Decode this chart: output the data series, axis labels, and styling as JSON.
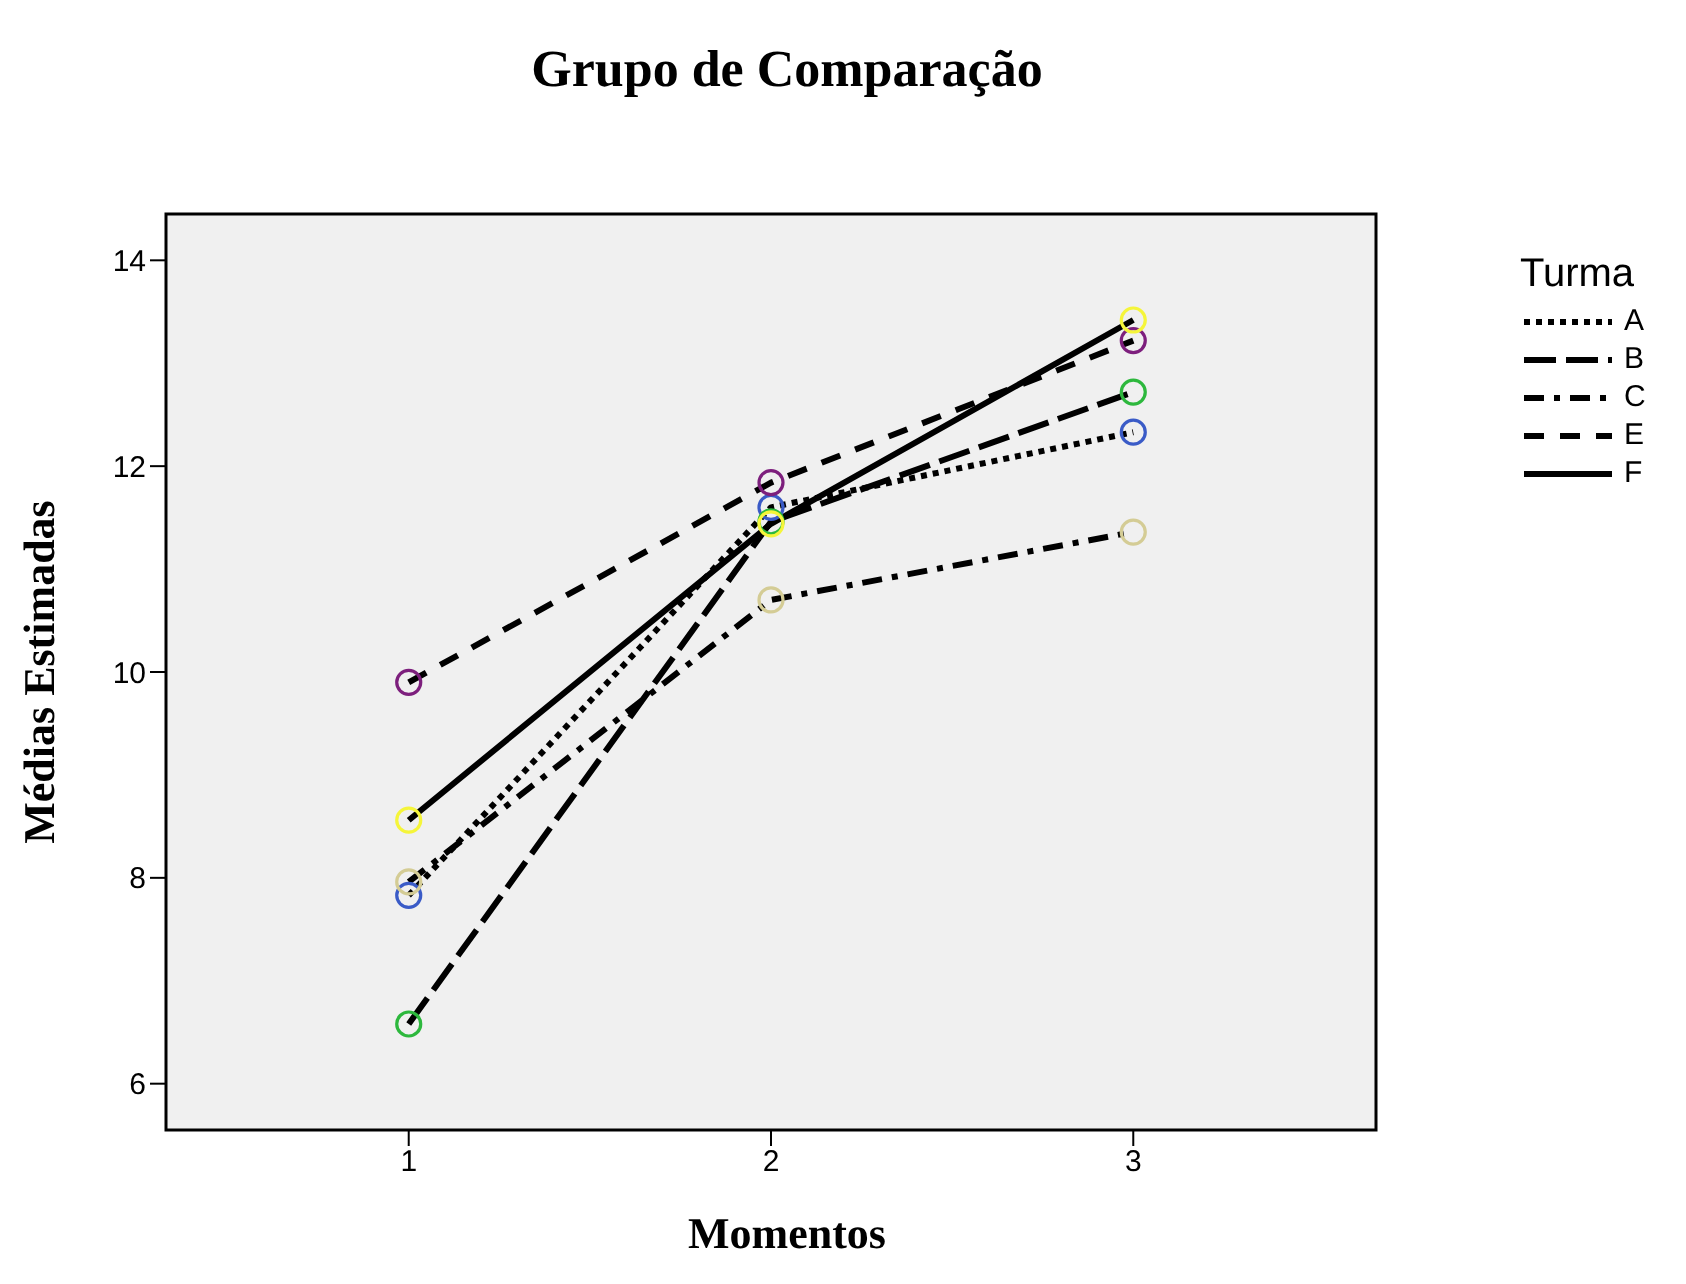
{
  "chart_data": {
    "type": "line",
    "title": "Grupo de Comparação",
    "xlabel": "Momentos",
    "ylabel": "Médias Estimadas",
    "legend_title": "Turma",
    "x": [
      1,
      2,
      3
    ],
    "xlim": [
      0.33,
      3.67
    ],
    "xticks": [
      1,
      2,
      3
    ],
    "ylim": [
      5.55,
      14.45
    ],
    "yticks": [
      6,
      8,
      10,
      12,
      14
    ],
    "legend": "right",
    "marker": "circle",
    "series": [
      {
        "name": "A",
        "color": "#000000",
        "colors": [
          "#3a5bc7",
          "#3a5bc7",
          "#3a5bc7"
        ],
        "line_style": "dotted",
        "values": [
          7.83,
          11.6,
          12.33
        ]
      },
      {
        "name": "B",
        "color": "#000000",
        "colors": [
          "#2db83d",
          "#2db83d",
          "#2db83d"
        ],
        "line_style": "longdash",
        "values": [
          6.58,
          11.46,
          12.72
        ]
      },
      {
        "name": "C",
        "color": "#000000",
        "colors": [
          "#d4cc95",
          "#d4cc95",
          "#d4cc95"
        ],
        "line_style": "dashdot",
        "values": [
          7.96,
          10.7,
          11.36
        ]
      },
      {
        "name": "E",
        "color": "#000000",
        "colors": [
          "#7d1f7d",
          "#7d1f7d",
          "#7d1f7d"
        ],
        "line_style": "dashed",
        "values": [
          9.9,
          11.84,
          13.22
        ]
      },
      {
        "name": "F",
        "color": "#000000",
        "colors": [
          "#f5f53a",
          "#f5f53a",
          "#f5f53a"
        ],
        "line_style": "solid",
        "values": [
          8.56,
          11.44,
          13.42
        ]
      }
    ]
  }
}
